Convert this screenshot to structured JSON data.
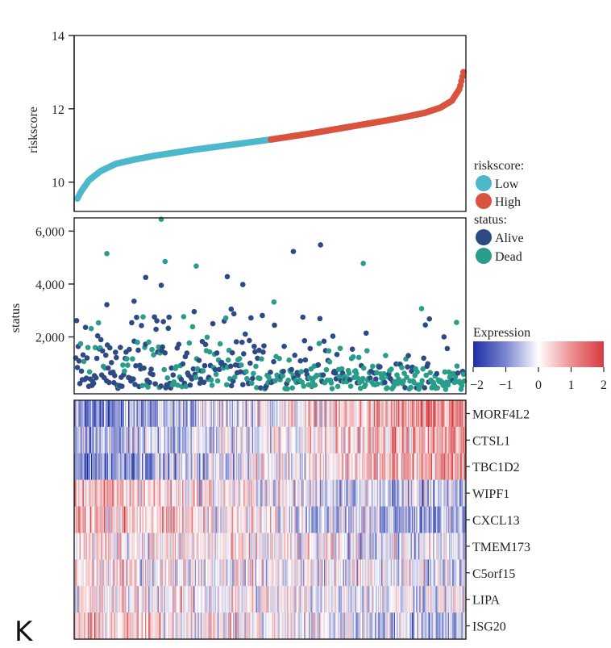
{
  "panel_label": "K",
  "colors": {
    "low": "#4db8cc",
    "high": "#d9533e",
    "alive": "#2e4a85",
    "dead": "#2a9d8a",
    "expr_low": "#1c2fa8",
    "expr_mid": "#ffffff",
    "expr_high": "#d63a3f"
  },
  "chart_data": [
    {
      "type": "scatter",
      "name": "riskscore-curve",
      "ylabel": "riskscore",
      "ylim": [
        9.2,
        14
      ],
      "yticks": [
        "10",
        "12",
        "14"
      ],
      "ytick_values": [
        10,
        12,
        14
      ],
      "n_samples": 370,
      "split_index": 185,
      "curve_points": [
        [
          0,
          9.55
        ],
        [
          0.01,
          9.75
        ],
        [
          0.03,
          10.05
        ],
        [
          0.06,
          10.3
        ],
        [
          0.1,
          10.5
        ],
        [
          0.15,
          10.62
        ],
        [
          0.2,
          10.72
        ],
        [
          0.25,
          10.8
        ],
        [
          0.3,
          10.88
        ],
        [
          0.35,
          10.95
        ],
        [
          0.4,
          11.02
        ],
        [
          0.45,
          11.09
        ],
        [
          0.5,
          11.16
        ],
        [
          0.55,
          11.24
        ],
        [
          0.6,
          11.32
        ],
        [
          0.65,
          11.41
        ],
        [
          0.7,
          11.5
        ],
        [
          0.75,
          11.59
        ],
        [
          0.8,
          11.68
        ],
        [
          0.85,
          11.78
        ],
        [
          0.9,
          11.89
        ],
        [
          0.94,
          12.03
        ],
        [
          0.97,
          12.22
        ],
        [
          0.99,
          12.55
        ],
        [
          1.0,
          13.0
        ]
      ],
      "legend": {
        "title": "riskscore:",
        "items": [
          {
            "label": "Low",
            "color_key": "low"
          },
          {
            "label": "High",
            "color_key": "high"
          }
        ]
      }
    },
    {
      "type": "scatter",
      "name": "survival-status",
      "ylabel": "status",
      "ylim": [
        -150,
        6500
      ],
      "yticks": [
        "2,000",
        "4,000",
        "6,000"
      ],
      "ytick_values": [
        2000,
        4000,
        6000
      ],
      "n_points": 480,
      "highlight_points": [
        {
          "rank": 0.22,
          "value": 6450,
          "status": "dead"
        },
        {
          "rank": 0.08,
          "value": 5150,
          "status": "dead"
        },
        {
          "rank": 0.23,
          "value": 4850,
          "status": "dead"
        },
        {
          "rank": 0.31,
          "value": 4680,
          "status": "dead"
        },
        {
          "rank": 0.56,
          "value": 5230,
          "status": "alive"
        },
        {
          "rank": 0.63,
          "value": 5480,
          "status": "alive"
        },
        {
          "rank": 0.74,
          "value": 4780,
          "status": "dead"
        },
        {
          "rank": 0.18,
          "value": 4250,
          "status": "alive"
        },
        {
          "rank": 0.22,
          "value": 3950,
          "status": "alive"
        },
        {
          "rank": 0.39,
          "value": 4280,
          "status": "alive"
        },
        {
          "rank": 0.43,
          "value": 3980,
          "status": "alive"
        },
        {
          "rank": 0.51,
          "value": 3320,
          "status": "dead"
        },
        {
          "rank": 0.08,
          "value": 3220,
          "status": "alive"
        },
        {
          "rank": 0.15,
          "value": 3350,
          "status": "alive"
        },
        {
          "rank": 0.4,
          "value": 3050,
          "status": "alive"
        },
        {
          "rank": 0.89,
          "value": 3070,
          "status": "dead"
        },
        {
          "rank": 0.98,
          "value": 2550,
          "status": "dead"
        }
      ],
      "legend": {
        "title": "status:",
        "items": [
          {
            "label": "Alive",
            "color_key": "alive"
          },
          {
            "label": "Dead",
            "color_key": "dead"
          }
        ]
      }
    },
    {
      "type": "heatmap",
      "name": "gene-expression",
      "genes": [
        "MORF4L2",
        "CTSL1",
        "TBC1D2",
        "WIPF1",
        "CXCL13",
        "TMEM173",
        "C5orf15",
        "LIPA",
        "ISG20"
      ],
      "trend": [
        1,
        0.8,
        0.9,
        -0.6,
        -0.7,
        -0.3,
        -0.2,
        -0.1,
        -0.5
      ],
      "n_columns": 370,
      "colorbar": {
        "title": "Expression",
        "range": [
          -2,
          2
        ],
        "ticks": [
          "−2",
          "−1",
          "0",
          "1",
          "2"
        ],
        "tick_values": [
          -2,
          -1,
          0,
          1,
          2
        ]
      }
    }
  ]
}
